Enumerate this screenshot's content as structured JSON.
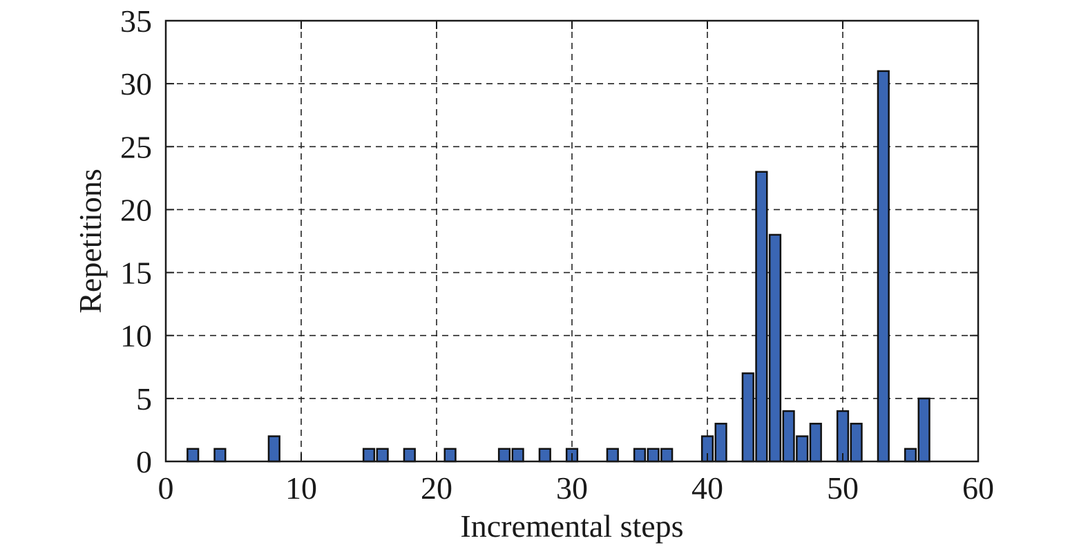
{
  "chart_data": {
    "type": "bar",
    "title": "",
    "xlabel": "Incremental steps",
    "ylabel": "Repetitions",
    "xlim": [
      0,
      60
    ],
    "ylim": [
      0,
      35
    ],
    "xticks": [
      "0",
      "10",
      "20",
      "30",
      "40",
      "50",
      "60"
    ],
    "yticks": [
      "0",
      "5",
      "10",
      "15",
      "20",
      "25",
      "30",
      "35"
    ],
    "grid": true,
    "bar_color": "#3a66b4",
    "bar_edge_color": "#111111",
    "x": [
      2,
      4,
      8,
      15,
      16,
      18,
      21,
      25,
      26,
      28,
      30,
      33,
      35,
      36,
      37,
      40,
      41,
      43,
      44,
      45,
      46,
      47,
      48,
      50,
      51,
      53,
      55,
      56
    ],
    "values": [
      1,
      1,
      2,
      1,
      1,
      1,
      1,
      1,
      1,
      1,
      1,
      1,
      1,
      1,
      1,
      2,
      3,
      7,
      23,
      18,
      4,
      2,
      3,
      4,
      3,
      31,
      1,
      5
    ]
  }
}
